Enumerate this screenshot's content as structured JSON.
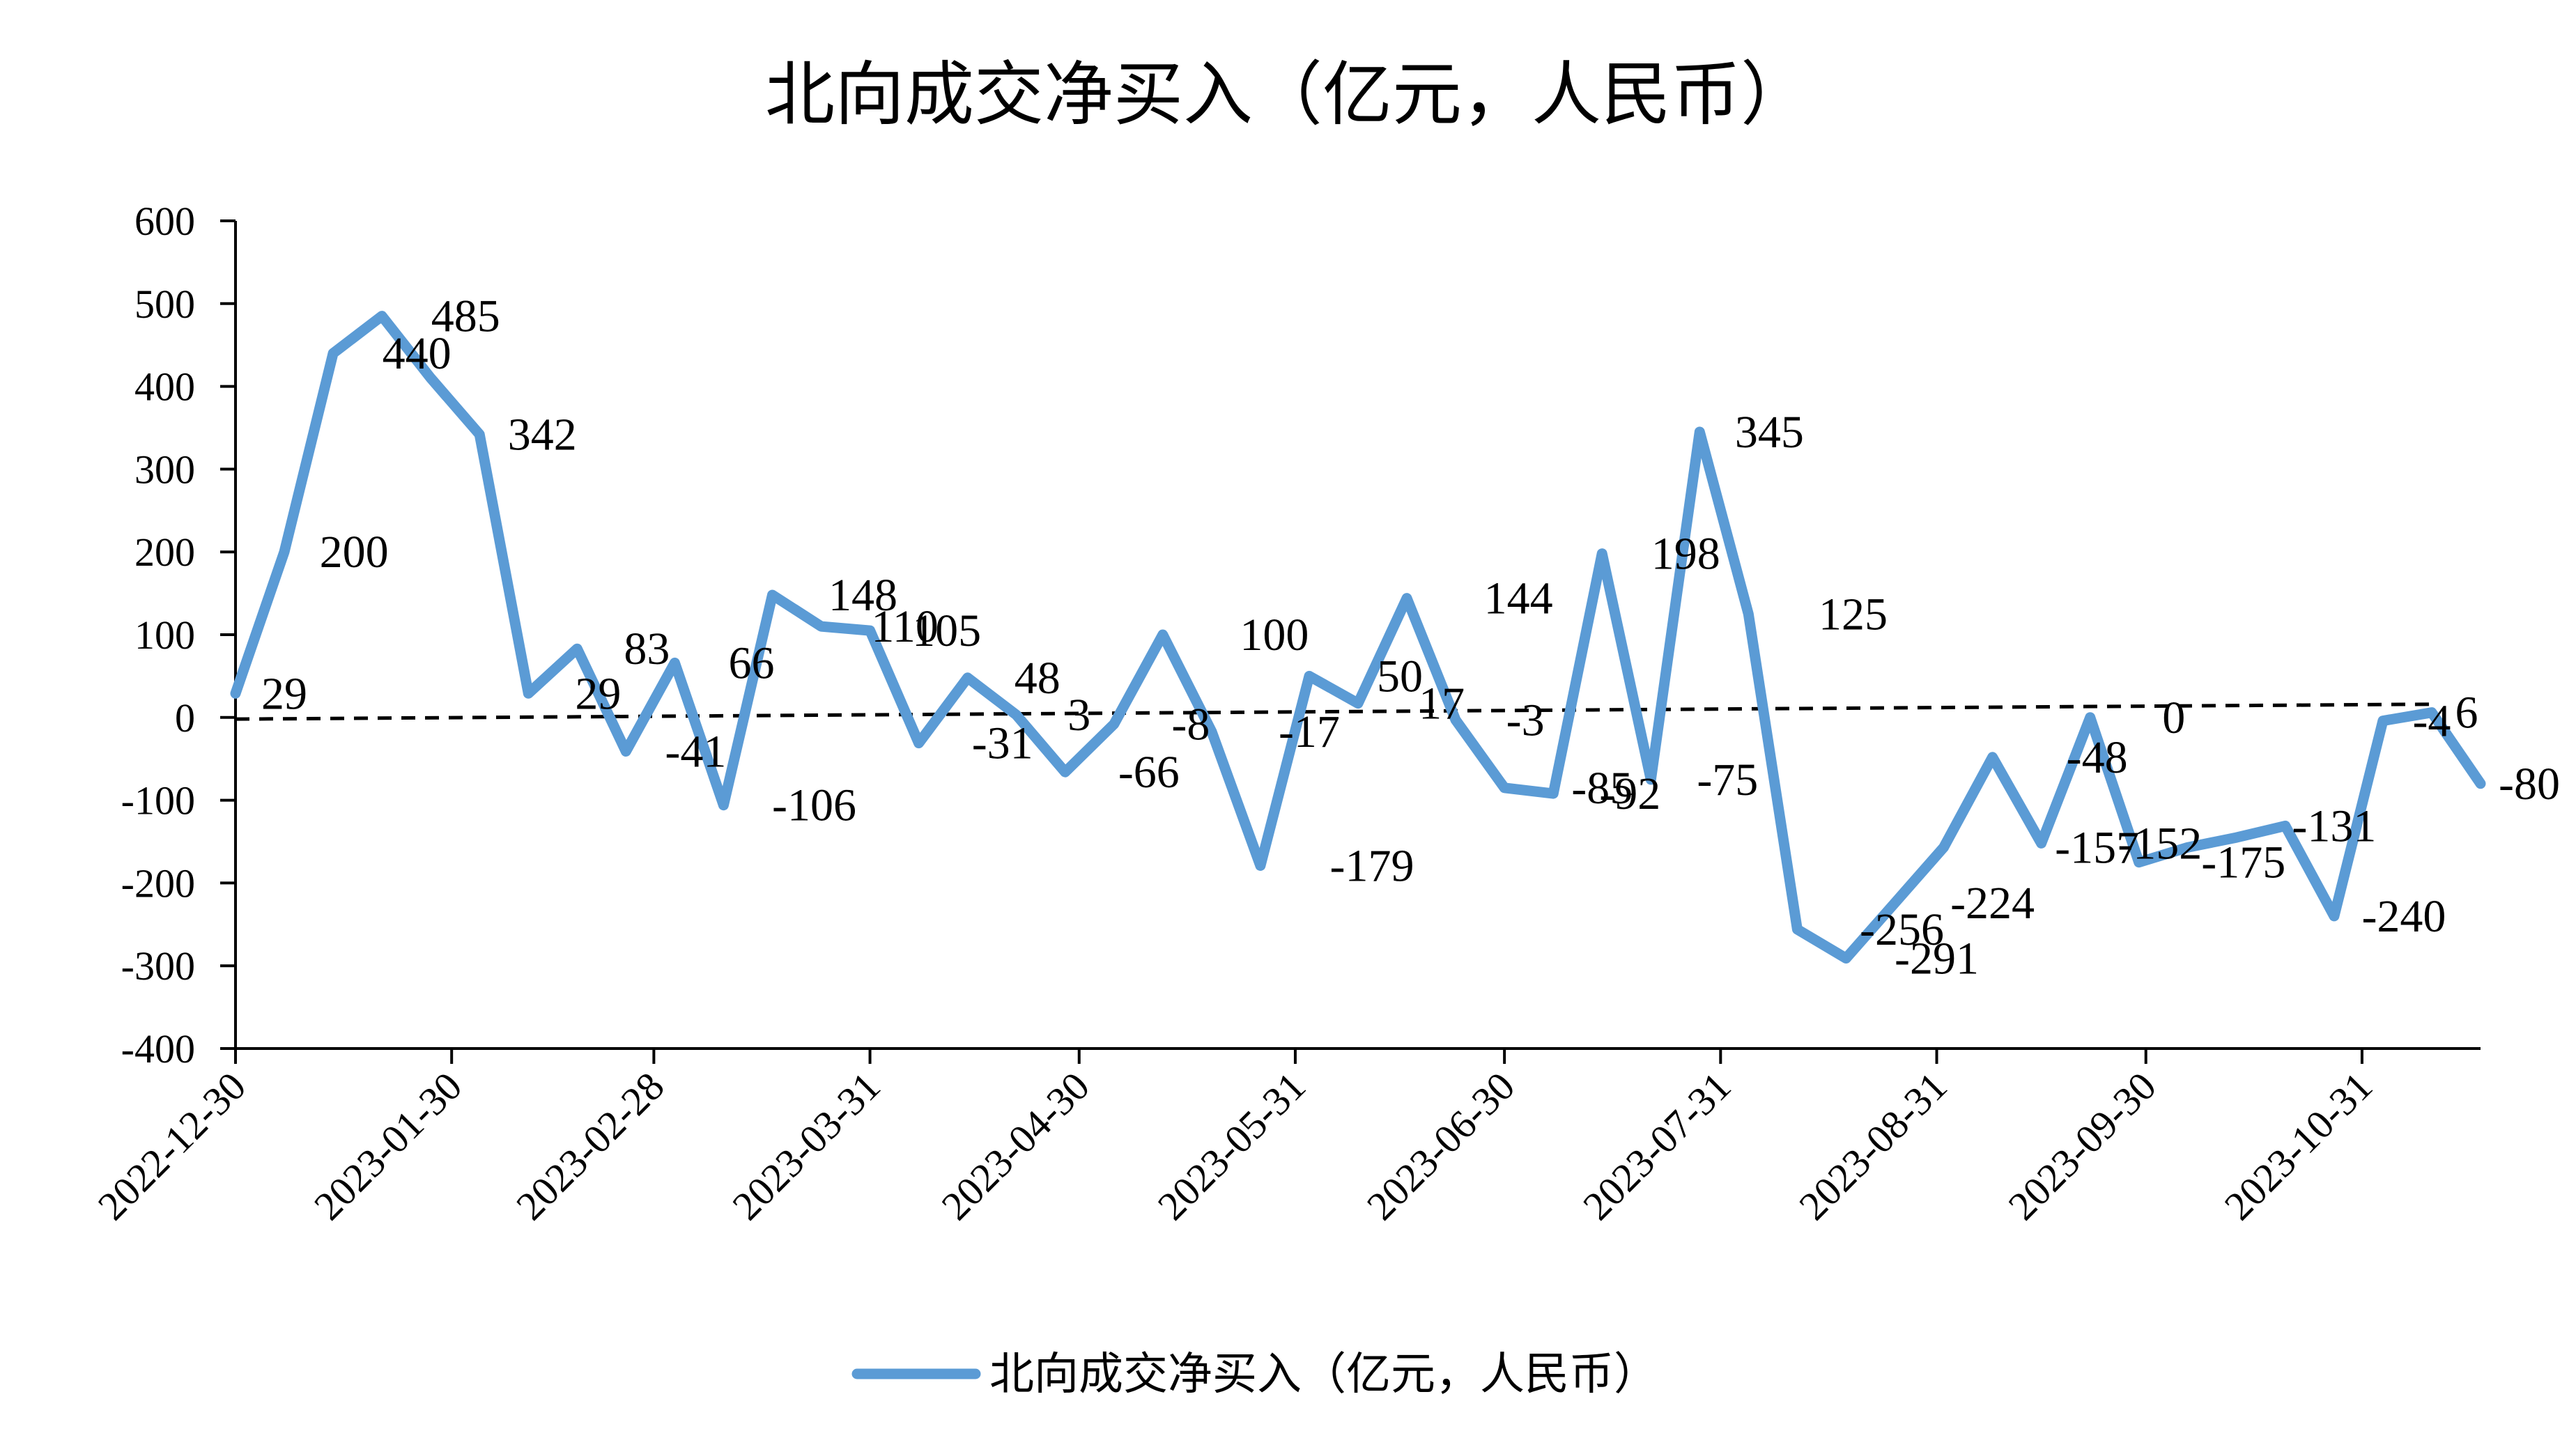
{
  "chart_data": {
    "type": "line",
    "title": "北向成交净买入（亿元，人民币）",
    "xlabel": "",
    "ylabel": "",
    "ylim": [
      -400,
      600
    ],
    "yticks": [
      600,
      500,
      400,
      300,
      200,
      100,
      0,
      -100,
      -200,
      -300,
      -400
    ],
    "xlim": [
      "2022-12-30",
      "2023-11-17"
    ],
    "xtick_labels": [
      "2022-12-30",
      "2023-01-30",
      "2023-02-28",
      "2023-03-31",
      "2023-04-30",
      "2023-05-31",
      "2023-06-30",
      "2023-07-31",
      "2023-08-31",
      "2023-09-30",
      "2023-10-31"
    ],
    "legend_position": "bottom",
    "grid": false,
    "series_color": "#5b9bd5",
    "trend_color": "#000000",
    "trendline": {
      "style": "dashed",
      "start": -2,
      "end": 16
    },
    "series": [
      {
        "name": "北向成交净买入（亿元，人民币）",
        "x": [
          "2022-12-30",
          "2023-01-06",
          "2023-01-13",
          "2023-01-20",
          "2023-01-27",
          "2023-02-03",
          "2023-02-10",
          "2023-02-17",
          "2023-02-24",
          "2023-03-03",
          "2023-03-10",
          "2023-03-17",
          "2023-03-24",
          "2023-03-31",
          "2023-04-07",
          "2023-04-14",
          "2023-04-21",
          "2023-04-28",
          "2023-05-05",
          "2023-05-12",
          "2023-05-19",
          "2023-05-26",
          "2023-06-02",
          "2023-06-09",
          "2023-06-16",
          "2023-06-23",
          "2023-06-30",
          "2023-07-07",
          "2023-07-14",
          "2023-07-21",
          "2023-07-28",
          "2023-08-04",
          "2023-08-11",
          "2023-08-18",
          "2023-08-25",
          "2023-09-01",
          "2023-09-08",
          "2023-09-15",
          "2023-09-22",
          "2023-09-29",
          "2023-10-06",
          "2023-10-13",
          "2023-10-20",
          "2023-10-27",
          "2023-11-03",
          "2023-11-10",
          "2023-11-17"
        ],
        "values": [
          29,
          200,
          440,
          485,
          410,
          342,
          29,
          83,
          -41,
          66,
          -106,
          148,
          110,
          105,
          -31,
          48,
          3,
          -66,
          -8,
          100,
          -17,
          -179,
          50,
          17,
          144,
          -3,
          -85,
          -92,
          198,
          -75,
          345,
          125,
          -256,
          -291,
          -224,
          -157,
          -48,
          -152,
          0,
          -175,
          -157,
          -145,
          -131,
          -240,
          -4,
          6,
          -80
        ]
      }
    ],
    "data_labels": [
      {
        "text": "29",
        "x": "2023-01-06",
        "y": 29
      },
      {
        "text": "200",
        "x": "2023-01-16",
        "y": 200
      },
      {
        "text": "440",
        "x": "2023-01-25",
        "y": 440
      },
      {
        "text": "485",
        "x": "2023-02-01",
        "y": 485
      },
      {
        "text": "342",
        "x": "2023-02-12",
        "y": 342
      },
      {
        "text": "29",
        "x": "2023-02-20",
        "y": 29
      },
      {
        "text": "83",
        "x": "2023-02-27",
        "y": 83
      },
      {
        "text": "-41",
        "x": "2023-03-06",
        "y": -41
      },
      {
        "text": "66",
        "x": "2023-03-14",
        "y": 66
      },
      {
        "text": "-106",
        "x": "2023-03-23",
        "y": -106
      },
      {
        "text": "148",
        "x": "2023-03-30",
        "y": 148
      },
      {
        "text": "110",
        "x": "2023-04-05",
        "y": 110
      },
      {
        "text": "105",
        "x": "2023-04-11",
        "y": 105
      },
      {
        "text": "-31",
        "x": "2023-04-19",
        "y": -31
      },
      {
        "text": "48",
        "x": "2023-04-24",
        "y": 48
      },
      {
        "text": "3",
        "x": "2023-04-30",
        "y": 3
      },
      {
        "text": "-66",
        "x": "2023-05-10",
        "y": -66
      },
      {
        "text": "-8",
        "x": "2023-05-16",
        "y": -8
      },
      {
        "text": "100",
        "x": "2023-05-28",
        "y": 100
      },
      {
        "text": "-17",
        "x": "2023-06-02",
        "y": -17
      },
      {
        "text": "-179",
        "x": "2023-06-11",
        "y": -179
      },
      {
        "text": "50",
        "x": "2023-06-15",
        "y": 50
      },
      {
        "text": "17",
        "x": "2023-06-21",
        "y": 17
      },
      {
        "text": "144",
        "x": "2023-07-02",
        "y": 144
      },
      {
        "text": "-3",
        "x": "2023-07-03",
        "y": -3
      },
      {
        "text": "-85",
        "x": "2023-07-14",
        "y": -85
      },
      {
        "text": "-92",
        "x": "2023-07-18",
        "y": -92
      },
      {
        "text": "198",
        "x": "2023-07-26",
        "y": 198
      },
      {
        "text": "-75",
        "x": "2023-08-01",
        "y": -75
      },
      {
        "text": "345",
        "x": "2023-08-07",
        "y": 345
      },
      {
        "text": "125",
        "x": "2023-08-19",
        "y": 125
      },
      {
        "text": "-256",
        "x": "2023-08-26",
        "y": -256
      },
      {
        "text": "-291",
        "x": "2023-08-31",
        "y": -291
      },
      {
        "text": "-224",
        "x": "2023-09-08",
        "y": -224
      },
      {
        "text": "-48",
        "x": "2023-09-23",
        "y": -48
      },
      {
        "text": "-157",
        "x": "2023-09-23",
        "y": -157
      },
      {
        "text": "-152",
        "x": "2023-10-02",
        "y": -152
      },
      {
        "text": "0",
        "x": "2023-10-04",
        "y": 0
      },
      {
        "text": "-175",
        "x": "2023-10-14",
        "y": -175
      },
      {
        "text": "-131",
        "x": "2023-10-27",
        "y": -131
      },
      {
        "text": "-240",
        "x": "2023-11-06",
        "y": -240
      },
      {
        "text": "-4",
        "x": "2023-11-10",
        "y": -4
      },
      {
        "text": "6",
        "x": "2023-11-15",
        "y": 6
      },
      {
        "text": "-80",
        "x": "2023-11-24",
        "y": -80
      }
    ]
  }
}
